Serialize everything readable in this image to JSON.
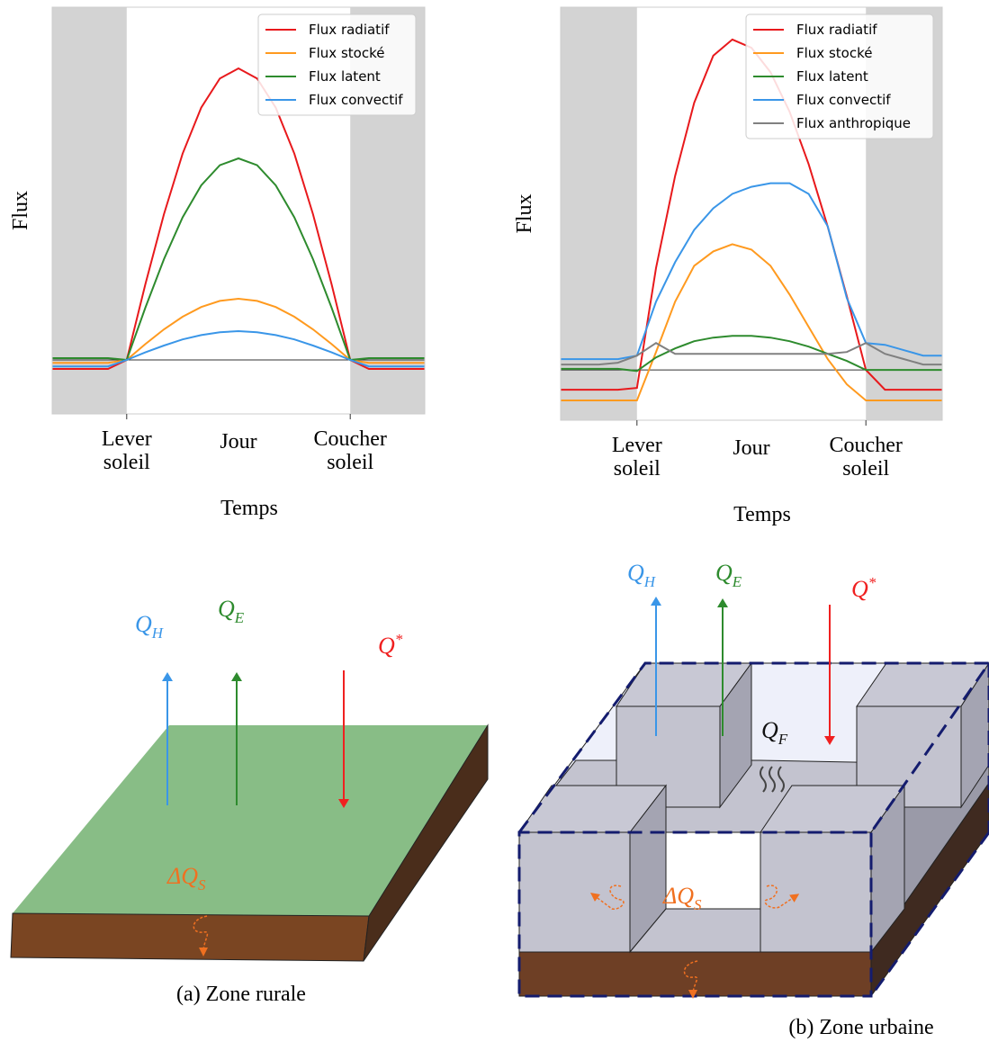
{
  "chart_data": [
    {
      "type": "line",
      "y_label": "Flux",
      "x_label": "Temps",
      "x_center_label": "Jour",
      "legend": "upper right",
      "baseline": 0,
      "x": [
        2,
        3,
        4,
        5,
        6,
        7,
        8,
        9,
        10,
        11,
        12,
        13,
        14,
        15,
        16,
        17,
        18,
        19,
        20,
        21,
        22
      ],
      "xlim": [
        2,
        22
      ],
      "ylim": [
        -1.5,
        9.8
      ],
      "xticks": [
        {
          "value": 6,
          "label": "Lever soleil"
        },
        {
          "value": 18,
          "label": "Coucher soleil"
        }
      ],
      "series": [
        {
          "name": "Flux radiatif",
          "color": "#e8191c",
          "values": [
            -0.25,
            -0.25,
            -0.25,
            -0.25,
            0,
            2.1,
            4.05,
            5.73,
            7.01,
            7.82,
            8.1,
            7.82,
            7.01,
            5.73,
            4.05,
            2.1,
            0,
            -0.25,
            -0.25,
            -0.25,
            -0.25
          ]
        },
        {
          "name": "Flux stocké",
          "color": "#ff9a1f",
          "values": [
            -0.08,
            -0.08,
            -0.08,
            -0.08,
            0,
            0.44,
            0.85,
            1.2,
            1.47,
            1.64,
            1.7,
            1.64,
            1.47,
            1.2,
            0.85,
            0.44,
            0,
            -0.08,
            -0.08,
            -0.08,
            -0.08
          ]
        },
        {
          "name": "Flux latent",
          "color": "#2e8b2e",
          "values": [
            0.05,
            0.05,
            0.05,
            0.05,
            0,
            1.45,
            2.8,
            3.96,
            4.85,
            5.41,
            5.6,
            5.41,
            4.85,
            3.96,
            2.8,
            1.45,
            0,
            0.05,
            0.05,
            0.05,
            0.05
          ]
        },
        {
          "name": "Flux convectif",
          "color": "#3a96e8",
          "values": [
            -0.18,
            -0.18,
            -0.18,
            -0.18,
            0,
            0.21,
            0.4,
            0.57,
            0.69,
            0.77,
            0.8,
            0.77,
            0.69,
            0.57,
            0.4,
            0.21,
            0,
            -0.18,
            -0.18,
            -0.18,
            -0.18
          ]
        }
      ]
    },
    {
      "type": "line",
      "y_label": "Flux",
      "x_label": "Temps",
      "x_center_label": "Jour",
      "legend": "upper right",
      "baseline": 0,
      "x": [
        2,
        3,
        4,
        5,
        6,
        7,
        8,
        9,
        10,
        11,
        12,
        13,
        14,
        15,
        16,
        17,
        18,
        19,
        20,
        21,
        22
      ],
      "xlim": [
        2,
        22
      ],
      "ylim": [
        -1.4,
        10.1
      ],
      "xticks": [
        {
          "value": 6,
          "label": "Lever soleil"
        },
        {
          "value": 18,
          "label": "Coucher soleil"
        }
      ],
      "series": [
        {
          "name": "Flux radiatif",
          "color": "#e8191c",
          "values": [
            -0.55,
            -0.55,
            -0.55,
            -0.55,
            -0.5,
            2.84,
            5.4,
            7.44,
            8.75,
            9.2,
            8.97,
            8.29,
            7.19,
            5.73,
            3.99,
            2.05,
            0,
            -0.55,
            -0.55,
            -0.55,
            -0.55
          ]
        },
        {
          "name": "Flux stocké",
          "color": "#ff9a1f",
          "values": [
            -0.85,
            -0.85,
            -0.85,
            -0.85,
            -0.85,
            0.5,
            1.9,
            2.9,
            3.3,
            3.5,
            3.35,
            2.9,
            2.1,
            1.2,
            0.3,
            -0.4,
            -0.85,
            -0.85,
            -0.85,
            -0.85,
            -0.85
          ]
        },
        {
          "name": "Flux latent",
          "color": "#2e8b2e",
          "values": [
            0.03,
            0.03,
            0.03,
            0.03,
            -0.03,
            0.35,
            0.6,
            0.8,
            0.9,
            0.95,
            0.95,
            0.9,
            0.8,
            0.65,
            0.45,
            0.25,
            0,
            0,
            0,
            0,
            0
          ]
        },
        {
          "name": "Flux convectif",
          "color": "#3a96e8",
          "values": [
            0.3,
            0.3,
            0.3,
            0.3,
            0.4,
            1.9,
            3.0,
            3.9,
            4.5,
            4.9,
            5.1,
            5.2,
            5.2,
            4.9,
            4.0,
            2.0,
            0.75,
            0.7,
            0.55,
            0.4,
            0.4
          ]
        },
        {
          "name": "Flux anthropique",
          "color": "#808080",
          "values": [
            0.15,
            0.15,
            0.15,
            0.2,
            0.4,
            0.75,
            0.45,
            0.45,
            0.45,
            0.45,
            0.45,
            0.45,
            0.45,
            0.45,
            0.45,
            0.5,
            0.75,
            0.45,
            0.3,
            0.15,
            0.15
          ]
        }
      ]
    }
  ],
  "diagrams": [
    {
      "caption": "(a) Zone rurale",
      "labels": [
        {
          "main": "Q",
          "sub": "H"
        },
        {
          "main": "Q",
          "sub": "E"
        },
        {
          "main": "Q",
          "sup": "*"
        },
        {
          "main": "ΔQ",
          "sub": "S"
        }
      ]
    },
    {
      "caption": "(b) Zone urbaine",
      "labels": [
        {
          "main": "Q",
          "sub": "H"
        },
        {
          "main": "Q",
          "sub": "E"
        },
        {
          "main": "Q",
          "sup": "*"
        },
        {
          "main": "Q",
          "sub": "F"
        },
        {
          "main": "ΔQ",
          "sub": "S"
        }
      ]
    }
  ]
}
